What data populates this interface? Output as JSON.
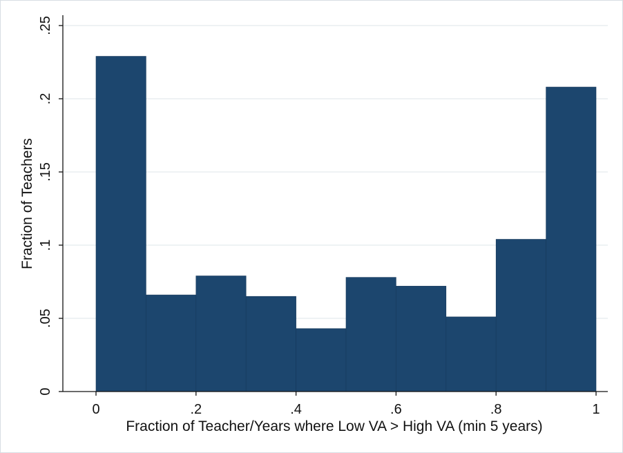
{
  "chart_data": {
    "type": "bar",
    "subtype": "histogram",
    "xlabel": "Fraction of Teacher/Years where Low VA > High VA (min 5 years)",
    "ylabel": "Fraction of Teachers",
    "bins": [
      {
        "from": 0.0,
        "to": 0.1,
        "value": 0.229
      },
      {
        "from": 0.1,
        "to": 0.2,
        "value": 0.066
      },
      {
        "from": 0.2,
        "to": 0.3,
        "value": 0.079
      },
      {
        "from": 0.3,
        "to": 0.4,
        "value": 0.065
      },
      {
        "from": 0.4,
        "to": 0.5,
        "value": 0.043
      },
      {
        "from": 0.5,
        "to": 0.6,
        "value": 0.078
      },
      {
        "from": 0.6,
        "to": 0.7,
        "value": 0.072
      },
      {
        "from": 0.7,
        "to": 0.8,
        "value": 0.051
      },
      {
        "from": 0.8,
        "to": 0.9,
        "value": 0.104
      },
      {
        "from": 0.9,
        "to": 1.0,
        "value": 0.208
      }
    ],
    "xlim": [
      0,
      1
    ],
    "ylim": [
      0,
      0.25
    ],
    "x_ticks": [
      {
        "value": 0,
        "label": "0"
      },
      {
        "value": 0.2,
        "label": ".2"
      },
      {
        "value": 0.4,
        "label": ".4"
      },
      {
        "value": 0.6,
        "label": ".6"
      },
      {
        "value": 0.8,
        "label": ".8"
      },
      {
        "value": 1,
        "label": "1"
      }
    ],
    "y_ticks": [
      {
        "value": 0,
        "label": "0"
      },
      {
        "value": 0.05,
        "label": ".05"
      },
      {
        "value": 0.1,
        "label": ".1"
      },
      {
        "value": 0.15,
        "label": ".15"
      },
      {
        "value": 0.2,
        "label": ".2"
      },
      {
        "value": 0.25,
        "label": ".25"
      }
    ],
    "grid": "horizontal",
    "legend": "none",
    "colors": {
      "bar": "#1c466e",
      "bar_edge": "#16385a",
      "grid": "#e8edf1",
      "axis": "#111111"
    }
  }
}
